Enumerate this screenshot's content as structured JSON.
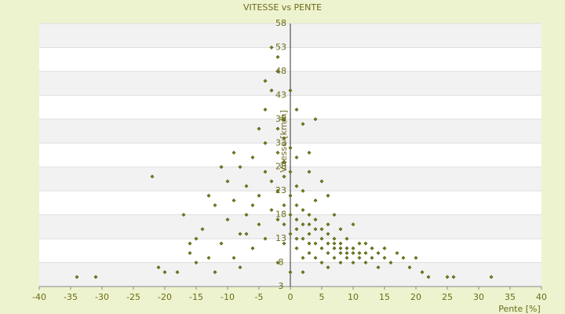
{
  "chart_data": {
    "type": "scatter",
    "title": "VITESSE vs PENTE",
    "x_label": "Pente [%]",
    "y_label": "Vitesse [km/h]",
    "color": "#7a8a1a",
    "xlim": [
      -40,
      40
    ],
    "xticks": [
      -40,
      -35,
      -30,
      -25,
      -20,
      -15,
      -10,
      -5,
      0,
      5,
      10,
      15,
      20,
      25,
      30,
      35,
      40
    ],
    "ylim": [
      3,
      58
    ],
    "yticks": [
      3,
      8,
      13,
      18,
      23,
      28,
      33,
      38,
      43,
      48,
      53,
      58
    ],
    "x": [
      -34,
      -31,
      -21,
      -20,
      -18,
      -16,
      -15,
      -15,
      -14,
      -13,
      -12,
      -11,
      -10,
      -10,
      -9,
      -9,
      -8,
      -8,
      -7,
      -7,
      -6,
      -6,
      -5,
      -5,
      -5,
      -4,
      -4,
      -4,
      -4,
      -3,
      -3,
      -3,
      -3,
      -2,
      -2,
      -2,
      -2,
      -2,
      -2,
      -1,
      -1,
      -1,
      -1,
      -1,
      -1,
      0,
      0,
      0,
      0,
      0,
      0,
      1,
      1,
      1,
      1,
      1,
      1,
      2,
      2,
      2,
      2,
      2,
      2,
      3,
      3,
      3,
      3,
      3,
      4,
      4,
      4,
      4,
      4,
      5,
      5,
      5,
      5,
      5,
      6,
      6,
      6,
      6,
      6,
      7,
      7,
      7,
      7,
      7,
      8,
      8,
      8,
      8,
      8,
      9,
      9,
      9,
      9,
      10,
      10,
      10,
      10,
      11,
      11,
      11,
      12,
      12,
      13,
      13,
      14,
      14,
      15,
      16,
      17,
      18,
      19,
      20,
      21,
      22,
      25,
      26,
      32,
      -17,
      -13,
      -11,
      -9,
      -7,
      -6,
      1,
      3,
      -4,
      -2,
      0,
      2,
      4,
      12,
      15,
      -22,
      -16,
      -12,
      6,
      -8,
      -1,
      1,
      3
    ],
    "values": [
      5,
      5,
      7,
      6,
      6,
      10,
      8,
      13,
      15,
      22,
      20,
      12,
      17,
      25,
      9,
      21,
      14,
      28,
      18,
      24,
      11,
      30,
      16,
      22,
      36,
      13,
      27,
      33,
      40,
      19,
      25,
      44,
      53,
      8,
      17,
      23,
      31,
      36,
      48,
      12,
      20,
      26,
      29,
      34,
      38,
      6,
      14,
      18,
      22,
      27,
      32,
      11,
      15,
      17,
      20,
      24,
      30,
      9,
      13,
      16,
      19,
      23,
      37,
      10,
      14,
      16,
      18,
      27,
      12,
      15,
      17,
      21,
      38,
      8,
      11,
      13,
      15,
      25,
      10,
      12,
      14,
      16,
      22,
      9,
      11,
      12,
      13,
      18,
      8,
      10,
      11,
      12,
      15,
      9,
      10,
      11,
      13,
      8,
      10,
      11,
      16,
      9,
      10,
      12,
      8,
      10,
      9,
      11,
      7,
      10,
      9,
      8,
      10,
      9,
      7,
      9,
      6,
      5,
      5,
      5,
      5,
      18,
      9,
      28,
      31,
      14,
      20,
      40,
      31,
      46,
      51,
      44,
      6,
      9,
      12,
      11,
      26,
      12,
      6,
      7,
      7,
      16,
      13,
      12
    ]
  }
}
